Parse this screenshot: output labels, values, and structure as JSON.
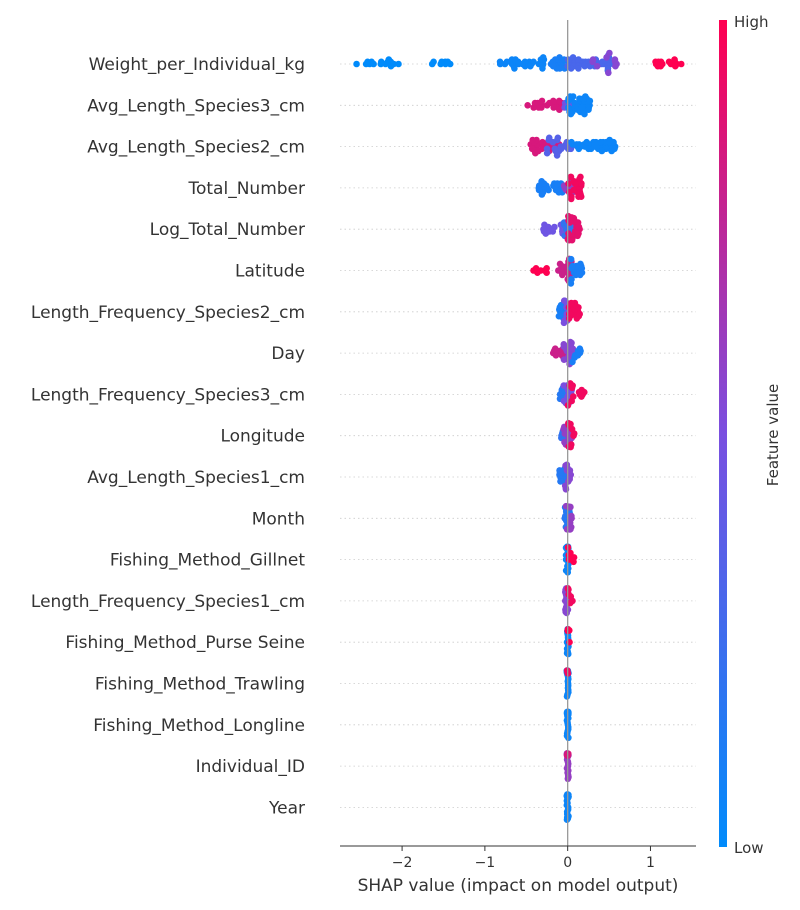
{
  "chart_data": {
    "type": "beeswarm",
    "title": "",
    "xlabel": "SHAP value (impact on model output)",
    "xlim": [
      -2.75,
      1.55
    ],
    "xticks": [
      -2,
      -1,
      0,
      1
    ],
    "xtick_labels": [
      "−2",
      "−1",
      "0",
      "1"
    ],
    "colorbar": {
      "label": "Feature value",
      "high": "High",
      "low": "Low",
      "color_low": "#008bfb",
      "color_high": "#ff0051"
    },
    "features": [
      {
        "name": "Weight_per_Individual_kg",
        "groups": [
          {
            "from": -2.55,
            "to": -2.0,
            "n": 16,
            "c": 0.0
          },
          {
            "from": -1.65,
            "to": -1.4,
            "n": 8,
            "c": 0.0
          },
          {
            "from": -0.85,
            "to": -0.25,
            "n": 30,
            "c": 0.05
          },
          {
            "from": -0.25,
            "to": 0.05,
            "n": 22,
            "c": 0.1
          },
          {
            "from": 0.0,
            "to": 0.55,
            "n": 42,
            "c": 0.3
          },
          {
            "from": 0.3,
            "to": 0.6,
            "n": 10,
            "c": 0.55
          },
          {
            "from": 1.05,
            "to": 1.4,
            "n": 14,
            "c": 1.0
          }
        ]
      },
      {
        "name": "Avg_Length_Species3_cm",
        "groups": [
          {
            "from": -0.5,
            "to": -0.05,
            "n": 24,
            "c": 0.85
          },
          {
            "from": -0.05,
            "to": 0.05,
            "n": 8,
            "c": 0.45
          },
          {
            "from": 0.0,
            "to": 0.28,
            "n": 40,
            "c": 0.05
          }
        ]
      },
      {
        "name": "Avg_Length_Species2_cm",
        "groups": [
          {
            "from": -0.45,
            "to": -0.1,
            "n": 30,
            "c": 0.85
          },
          {
            "from": -0.25,
            "to": 0.05,
            "n": 22,
            "c": 0.35
          },
          {
            "from": 0.0,
            "to": 0.58,
            "n": 42,
            "c": 0.05
          }
        ]
      },
      {
        "name": "Total_Number",
        "groups": [
          {
            "from": -0.35,
            "to": -0.05,
            "n": 26,
            "c": 0.1
          },
          {
            "from": -0.05,
            "to": 0.1,
            "n": 14,
            "c": 0.6
          },
          {
            "from": 0.0,
            "to": 0.18,
            "n": 24,
            "c": 0.95
          }
        ]
      },
      {
        "name": "Log_Total_Number",
        "groups": [
          {
            "from": -0.3,
            "to": -0.05,
            "n": 18,
            "c": 0.45
          },
          {
            "from": -0.05,
            "to": 0.1,
            "n": 14,
            "c": 0.2
          },
          {
            "from": 0.0,
            "to": 0.15,
            "n": 28,
            "c": 0.9
          }
        ]
      },
      {
        "name": "Latitude",
        "groups": [
          {
            "from": -0.42,
            "to": -0.2,
            "n": 8,
            "c": 1.0
          },
          {
            "from": -0.12,
            "to": 0.05,
            "n": 26,
            "c": 0.8
          },
          {
            "from": 0.0,
            "to": 0.2,
            "n": 20,
            "c": 0.1
          }
        ]
      },
      {
        "name": "Length_Frequency_Species2_cm",
        "groups": [
          {
            "from": -0.12,
            "to": 0.0,
            "n": 16,
            "c": 0.1
          },
          {
            "from": -0.05,
            "to": 0.05,
            "n": 12,
            "c": 0.5
          },
          {
            "from": 0.0,
            "to": 0.15,
            "n": 22,
            "c": 0.95
          }
        ]
      },
      {
        "name": "Day",
        "groups": [
          {
            "from": -0.18,
            "to": -0.02,
            "n": 14,
            "c": 0.8
          },
          {
            "from": -0.05,
            "to": 0.08,
            "n": 24,
            "c": 0.55
          },
          {
            "from": 0.05,
            "to": 0.22,
            "n": 8,
            "c": 0.1
          }
        ]
      },
      {
        "name": "Length_Frequency_Species3_cm",
        "groups": [
          {
            "from": -0.1,
            "to": 0.0,
            "n": 12,
            "c": 0.15
          },
          {
            "from": -0.05,
            "to": 0.05,
            "n": 16,
            "c": 0.5
          },
          {
            "from": 0.0,
            "to": 0.22,
            "n": 14,
            "c": 0.95
          }
        ]
      },
      {
        "name": "Longitude",
        "groups": [
          {
            "from": -0.08,
            "to": 0.0,
            "n": 10,
            "c": 0.2
          },
          {
            "from": -0.05,
            "to": 0.05,
            "n": 16,
            "c": 0.6
          },
          {
            "from": 0.0,
            "to": 0.08,
            "n": 12,
            "c": 0.95
          }
        ]
      },
      {
        "name": "Avg_Length_Species1_cm",
        "groups": [
          {
            "from": -0.1,
            "to": 0.0,
            "n": 18,
            "c": 0.15
          },
          {
            "from": -0.03,
            "to": 0.05,
            "n": 14,
            "c": 0.55
          }
        ]
      },
      {
        "name": "Month",
        "groups": [
          {
            "from": -0.05,
            "to": 0.03,
            "n": 18,
            "c": 0.15
          },
          {
            "from": -0.02,
            "to": 0.05,
            "n": 12,
            "c": 0.6
          }
        ]
      },
      {
        "name": "Fishing_Method_Gillnet",
        "groups": [
          {
            "from": -0.02,
            "to": 0.01,
            "n": 22,
            "c": 0.05
          },
          {
            "from": 0.0,
            "to": 0.08,
            "n": 8,
            "c": 1.0
          }
        ]
      },
      {
        "name": "Length_Frequency_Species1_cm",
        "groups": [
          {
            "from": -0.03,
            "to": 0.02,
            "n": 20,
            "c": 0.55
          },
          {
            "from": 0.0,
            "to": 0.06,
            "n": 6,
            "c": 0.95
          }
        ]
      },
      {
        "name": "Fishing_Method_Purse Seine",
        "groups": [
          {
            "from": -0.01,
            "to": 0.01,
            "n": 20,
            "c": 0.05
          },
          {
            "from": 0.0,
            "to": 0.04,
            "n": 6,
            "c": 1.0
          }
        ]
      },
      {
        "name": "Fishing_Method_Trawling",
        "groups": [
          {
            "from": -0.01,
            "to": 0.01,
            "n": 26,
            "c": 0.05
          },
          {
            "from": -0.01,
            "to": 0.01,
            "n": 4,
            "c": 0.95
          }
        ]
      },
      {
        "name": "Fishing_Method_Longline",
        "groups": [
          {
            "from": -0.01,
            "to": 0.01,
            "n": 30,
            "c": 0.05
          }
        ]
      },
      {
        "name": "Individual_ID",
        "groups": [
          {
            "from": -0.01,
            "to": 0.01,
            "n": 26,
            "c": 0.6
          },
          {
            "from": -0.01,
            "to": 0.01,
            "n": 6,
            "c": 0.85
          }
        ]
      },
      {
        "name": "Year",
        "groups": [
          {
            "from": -0.01,
            "to": 0.01,
            "n": 34,
            "c": 0.05
          }
        ]
      }
    ]
  }
}
